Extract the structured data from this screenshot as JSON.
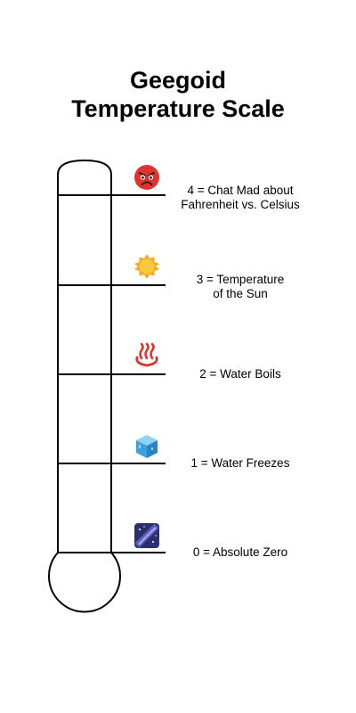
{
  "title": {
    "line1": "Geegoid",
    "line2": "Temperature Scale"
  },
  "levels": [
    {
      "value": 4,
      "label": "4 = Chat Mad about\nFahrenheit vs. Celsius",
      "icon": "angry-face-icon"
    },
    {
      "value": 3,
      "label": "3 = Temperature\nof the Sun",
      "icon": "sun-icon"
    },
    {
      "value": 2,
      "label": "2 = Water Boils",
      "icon": "hot-springs-icon"
    },
    {
      "value": 1,
      "label": "1 = Water Freezes",
      "icon": "ice-cube-icon"
    },
    {
      "value": 0,
      "label": "0 = Absolute Zero",
      "icon": "milky-way-icon"
    }
  ],
  "colors": {
    "angry_face": "#e0332c",
    "sun": "#f6a821",
    "hot_springs": "#e0332c",
    "ice": "#3ea0e0",
    "galaxy": "#2a2f6e"
  }
}
